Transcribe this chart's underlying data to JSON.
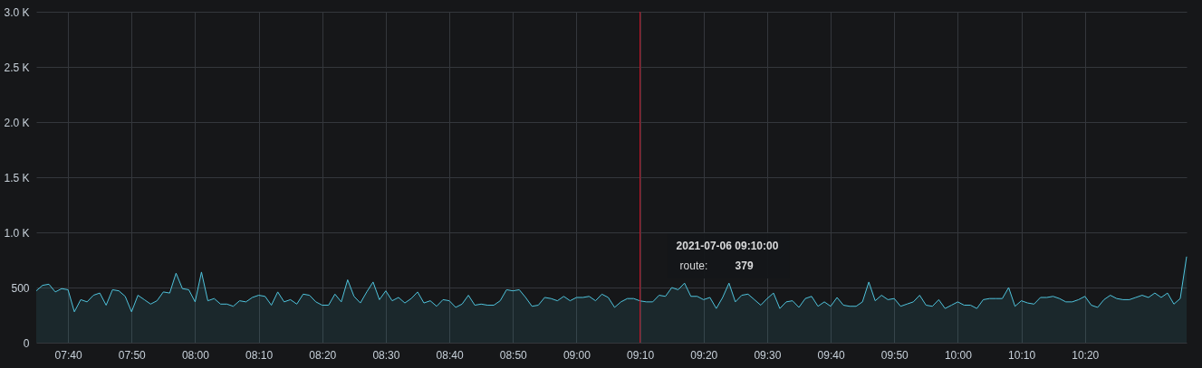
{
  "chart_data": {
    "type": "area",
    "x": [
      "2021-07-06T07:35",
      "2021-07-06T07:36",
      "2021-07-06T07:37",
      "2021-07-06T07:38",
      "2021-07-06T07:39",
      "2021-07-06T07:40",
      "2021-07-06T07:41",
      "2021-07-06T07:42",
      "2021-07-06T07:43",
      "2021-07-06T07:44",
      "2021-07-06T07:45",
      "2021-07-06T07:46",
      "2021-07-06T07:47",
      "2021-07-06T07:48",
      "2021-07-06T07:49",
      "2021-07-06T07:50",
      "2021-07-06T07:51",
      "2021-07-06T07:52",
      "2021-07-06T07:53",
      "2021-07-06T07:54",
      "2021-07-06T07:55",
      "2021-07-06T07:56",
      "2021-07-06T07:57",
      "2021-07-06T07:58",
      "2021-07-06T07:59",
      "2021-07-06T08:00",
      "2021-07-06T08:01",
      "2021-07-06T08:02",
      "2021-07-06T08:03",
      "2021-07-06T08:04",
      "2021-07-06T08:05",
      "2021-07-06T08:06",
      "2021-07-06T08:07",
      "2021-07-06T08:08",
      "2021-07-06T08:09",
      "2021-07-06T08:10",
      "2021-07-06T08:11",
      "2021-07-06T08:12",
      "2021-07-06T08:13",
      "2021-07-06T08:14",
      "2021-07-06T08:15",
      "2021-07-06T08:16",
      "2021-07-06T08:17",
      "2021-07-06T08:18",
      "2021-07-06T08:19",
      "2021-07-06T08:20",
      "2021-07-06T08:21",
      "2021-07-06T08:22",
      "2021-07-06T08:23",
      "2021-07-06T08:24",
      "2021-07-06T08:25",
      "2021-07-06T08:26",
      "2021-07-06T08:27",
      "2021-07-06T08:28",
      "2021-07-06T08:29",
      "2021-07-06T08:30",
      "2021-07-06T08:31",
      "2021-07-06T08:32",
      "2021-07-06T08:33",
      "2021-07-06T08:34",
      "2021-07-06T08:35",
      "2021-07-06T08:36",
      "2021-07-06T08:37",
      "2021-07-06T08:38",
      "2021-07-06T08:39",
      "2021-07-06T08:40",
      "2021-07-06T08:41",
      "2021-07-06T08:42",
      "2021-07-06T08:43",
      "2021-07-06T08:44",
      "2021-07-06T08:45",
      "2021-07-06T08:46",
      "2021-07-06T08:47",
      "2021-07-06T08:48",
      "2021-07-06T08:49",
      "2021-07-06T08:50",
      "2021-07-06T08:51",
      "2021-07-06T08:52",
      "2021-07-06T08:53",
      "2021-07-06T08:54",
      "2021-07-06T08:55",
      "2021-07-06T08:56",
      "2021-07-06T08:57",
      "2021-07-06T08:58",
      "2021-07-06T08:59",
      "2021-07-06T09:00",
      "2021-07-06T09:01",
      "2021-07-06T09:02",
      "2021-07-06T09:03",
      "2021-07-06T09:04",
      "2021-07-06T09:05",
      "2021-07-06T09:06",
      "2021-07-06T09:07",
      "2021-07-06T09:08",
      "2021-07-06T09:09",
      "2021-07-06T09:10",
      "2021-07-06T09:11",
      "2021-07-06T09:12",
      "2021-07-06T09:13",
      "2021-07-06T09:14",
      "2021-07-06T09:15",
      "2021-07-06T09:16",
      "2021-07-06T09:17",
      "2021-07-06T09:18",
      "2021-07-06T09:19",
      "2021-07-06T09:20",
      "2021-07-06T09:21",
      "2021-07-06T09:22",
      "2021-07-06T09:23",
      "2021-07-06T09:24",
      "2021-07-06T09:25",
      "2021-07-06T09:26",
      "2021-07-06T09:27",
      "2021-07-06T09:28",
      "2021-07-06T09:29",
      "2021-07-06T09:30",
      "2021-07-06T09:31",
      "2021-07-06T09:32",
      "2021-07-06T09:33",
      "2021-07-06T09:34",
      "2021-07-06T09:35",
      "2021-07-06T09:36",
      "2021-07-06T09:37",
      "2021-07-06T09:38",
      "2021-07-06T09:39",
      "2021-07-06T09:40",
      "2021-07-06T09:41",
      "2021-07-06T09:42",
      "2021-07-06T09:43",
      "2021-07-06T09:44",
      "2021-07-06T09:45",
      "2021-07-06T09:46",
      "2021-07-06T09:47",
      "2021-07-06T09:48",
      "2021-07-06T09:49",
      "2021-07-06T09:50",
      "2021-07-06T09:51",
      "2021-07-06T09:52",
      "2021-07-06T09:53",
      "2021-07-06T09:54",
      "2021-07-06T09:55",
      "2021-07-06T09:56",
      "2021-07-06T09:57",
      "2021-07-06T09:58",
      "2021-07-06T09:59",
      "2021-07-06T10:00",
      "2021-07-06T10:01",
      "2021-07-06T10:02",
      "2021-07-06T10:03",
      "2021-07-06T10:04",
      "2021-07-06T10:05",
      "2021-07-06T10:06",
      "2021-07-06T10:07",
      "2021-07-06T10:08",
      "2021-07-06T10:09",
      "2021-07-06T10:10",
      "2021-07-06T10:11",
      "2021-07-06T10:12",
      "2021-07-06T10:13",
      "2021-07-06T10:14",
      "2021-07-06T10:15",
      "2021-07-06T10:16",
      "2021-07-06T10:17",
      "2021-07-06T10:18",
      "2021-07-06T10:19",
      "2021-07-06T10:20",
      "2021-07-06T10:21",
      "2021-07-06T10:22",
      "2021-07-06T10:23",
      "2021-07-06T10:24",
      "2021-07-06T10:25",
      "2021-07-06T10:26",
      "2021-07-06T10:27",
      "2021-07-06T10:28",
      "2021-07-06T10:29",
      "2021-07-06T10:30",
      "2021-07-06T10:31",
      "2021-07-06T10:32",
      "2021-07-06T10:33",
      "2021-07-06T10:34",
      "2021-07-06T10:35",
      "2021-07-06T10:36"
    ],
    "series": [
      {
        "name": "route:",
        "color": "#4fc3dc",
        "values": [
          470,
          520,
          530,
          460,
          490,
          480,
          280,
          390,
          370,
          430,
          450,
          340,
          480,
          470,
          420,
          280,
          430,
          390,
          350,
          380,
          460,
          450,
          630,
          490,
          480,
          370,
          640,
          380,
          400,
          350,
          350,
          330,
          380,
          370,
          410,
          430,
          420,
          340,
          460,
          370,
          390,
          350,
          440,
          430,
          370,
          340,
          340,
          440,
          370,
          570,
          420,
          360,
          460,
          550,
          390,
          470,
          380,
          410,
          360,
          400,
          460,
          360,
          380,
          330,
          390,
          380,
          320,
          350,
          430,
          340,
          350,
          340,
          340,
          380,
          480,
          470,
          480,
          410,
          330,
          340,
          410,
          400,
          380,
          420,
          380,
          410,
          410,
          420,
          380,
          440,
          410,
          320,
          370,
          400,
          400,
          379,
          370,
          370,
          430,
          420,
          500,
          480,
          540,
          420,
          420,
          390,
          410,
          310,
          410,
          540,
          370,
          430,
          440,
          390,
          340,
          400,
          450,
          310,
          370,
          380,
          320,
          400,
          420,
          330,
          370,
          330,
          410,
          340,
          330,
          330,
          370,
          550,
          380,
          430,
          390,
          400,
          330,
          350,
          370,
          430,
          340,
          330,
          390,
          310,
          340,
          370,
          340,
          340,
          310,
          390,
          400,
          400,
          400,
          500,
          330,
          380,
          360,
          350,
          410,
          410,
          420,
          400,
          370,
          370,
          390,
          420,
          340,
          320,
          390,
          430,
          400,
          390,
          390,
          410,
          430,
          410,
          450,
          410,
          450,
          350,
          400,
          780
        ]
      }
    ],
    "xlim": [
      "2021-07-06T07:35",
      "2021-07-06T10:36"
    ],
    "xticks": [
      {
        "value": "2021-07-06T07:40",
        "label": "07:40"
      },
      {
        "value": "2021-07-06T07:50",
        "label": "07:50"
      },
      {
        "value": "2021-07-06T08:00",
        "label": "08:00"
      },
      {
        "value": "2021-07-06T08:10",
        "label": "08:10"
      },
      {
        "value": "2021-07-06T08:20",
        "label": "08:20"
      },
      {
        "value": "2021-07-06T08:30",
        "label": "08:30"
      },
      {
        "value": "2021-07-06T08:40",
        "label": "08:40"
      },
      {
        "value": "2021-07-06T08:50",
        "label": "08:50"
      },
      {
        "value": "2021-07-06T09:00",
        "label": "09:00"
      },
      {
        "value": "2021-07-06T09:10",
        "label": "09:10"
      },
      {
        "value": "2021-07-06T09:20",
        "label": "09:20"
      },
      {
        "value": "2021-07-06T09:30",
        "label": "09:30"
      },
      {
        "value": "2021-07-06T09:40",
        "label": "09:40"
      },
      {
        "value": "2021-07-06T09:50",
        "label": "09:50"
      },
      {
        "value": "2021-07-06T10:00",
        "label": "10:00"
      },
      {
        "value": "2021-07-06T10:10",
        "label": "10:10"
      },
      {
        "value": "2021-07-06T10:20",
        "label": "10:20"
      }
    ],
    "ylim": [
      0,
      3000
    ],
    "yticks": [
      0,
      500,
      {
        "value": 1000,
        "label": "1.0 K"
      },
      {
        "value": 1500,
        "label": "1.5 K"
      },
      {
        "value": 2000,
        "label": "2.0 K"
      },
      {
        "value": 2500,
        "label": "2.5 K"
      },
      {
        "value": 3000,
        "label": "3.0 K"
      }
    ],
    "grid": true,
    "ref_lines": [
      {
        "axis": "x",
        "value": "2021-07-06T09:10",
        "label": null,
        "color": "#c4162a"
      }
    ],
    "annotations": [
      "2021-07-06 09:10:00",
      "379"
    ]
  }
}
